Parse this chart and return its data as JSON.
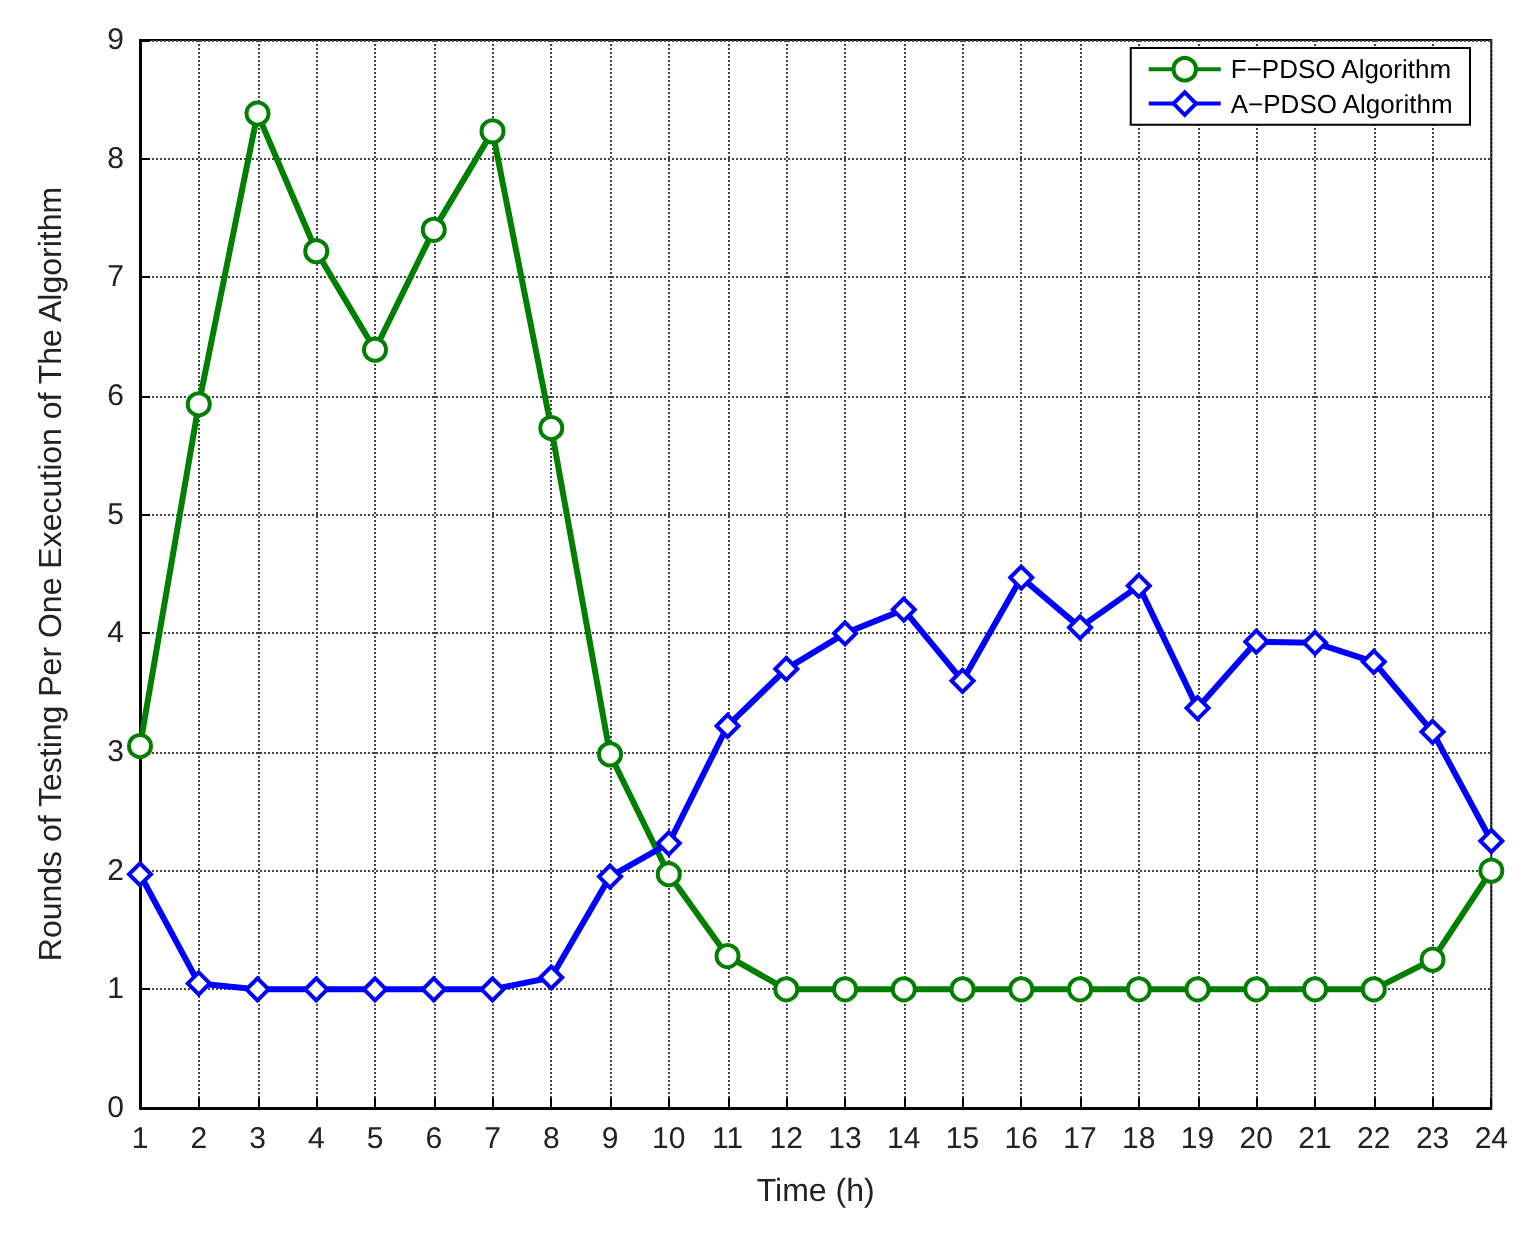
{
  "chart_data": {
    "type": "line",
    "xlabel": "Time (h)",
    "ylabel": "Rounds of Testing Per One Execution of The Algorithm",
    "x": [
      1,
      2,
      3,
      4,
      5,
      6,
      7,
      8,
      9,
      10,
      11,
      12,
      13,
      14,
      15,
      16,
      17,
      18,
      19,
      20,
      21,
      22,
      23,
      24
    ],
    "series": [
      {
        "name": "F−PDSO Algorithm",
        "color": "#007f00",
        "marker": "circle",
        "values": [
          3.05,
          5.93,
          8.38,
          7.22,
          6.39,
          7.4,
          8.23,
          5.73,
          2.98,
          1.97,
          1.28,
          1,
          1,
          1,
          1,
          1,
          1,
          1,
          1,
          1,
          1,
          1,
          1.25,
          2
        ]
      },
      {
        "name": "A−PDSO Algorithm",
        "color": "#0000ff",
        "marker": "diamond",
        "values": [
          1.97,
          1.05,
          1,
          1,
          1,
          1,
          1,
          1.1,
          1.95,
          2.23,
          3.22,
          3.7,
          4,
          4.2,
          3.6,
          4.47,
          4.05,
          4.4,
          3.37,
          3.93,
          3.92,
          3.76,
          3.17,
          2.25
        ]
      }
    ],
    "xlim": [
      1,
      24
    ],
    "xticks": [
      1,
      2,
      3,
      4,
      5,
      6,
      7,
      8,
      9,
      10,
      11,
      12,
      13,
      14,
      15,
      16,
      17,
      18,
      19,
      20,
      21,
      22,
      23,
      24
    ],
    "ylim": [
      0,
      9
    ],
    "yticks": [
      0,
      1,
      2,
      3,
      4,
      5,
      6,
      7,
      8,
      9
    ],
    "grid": true,
    "legend": "top right",
    "line_style": "solid"
  }
}
